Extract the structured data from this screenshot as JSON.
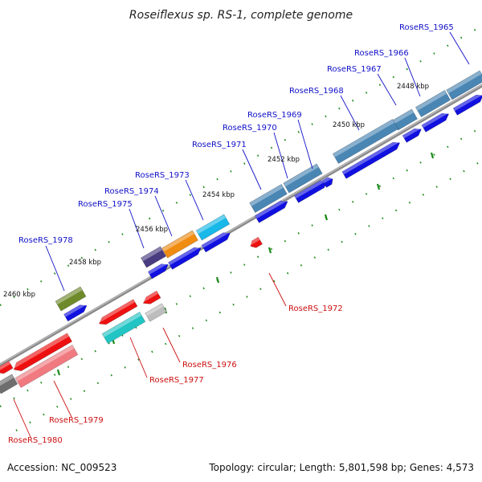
{
  "title": "Roseiflexus sp. RS-1, complete genome",
  "footer": {
    "accession": "Accession: NC_009523",
    "summary": "Topology: circular; Length: 5,801,598 bp; Genes: 4,573"
  },
  "colors": {
    "forward_label": "#1010c8",
    "reverse_label": "#cc1010",
    "backbone": "#8a8a8a",
    "tick": "#1a8a1a"
  },
  "scale_labels": [
    "2448 kbp",
    "2450 kbp",
    "2452 kbp",
    "2454 kbp",
    "2456 kbp",
    "2458 kbp",
    "2460 kbp"
  ],
  "genes": [
    {
      "id": "RoseRS_1965",
      "strand": "forward",
      "color": "#4a86b4"
    },
    {
      "id": "RoseRS_1966",
      "strand": "forward",
      "color": "#4a86b4"
    },
    {
      "id": "RoseRS_1967",
      "strand": "forward",
      "color": "#4a86b4"
    },
    {
      "id": "RoseRS_1968",
      "strand": "forward",
      "color": "#4a86b4"
    },
    {
      "id": "RoseRS_1969",
      "strand": "forward",
      "color": "#4a86b4"
    },
    {
      "id": "RoseRS_1970",
      "strand": "forward",
      "color": "#4a86b4"
    },
    {
      "id": "RoseRS_1971",
      "strand": "forward",
      "color": "#4a86b4"
    },
    {
      "id": "RoseRS_1973",
      "strand": "forward",
      "color": "#18b8e8"
    },
    {
      "id": "RoseRS_1974",
      "strand": "forward",
      "color": "#f08c10"
    },
    {
      "id": "RoseRS_1975",
      "strand": "forward",
      "color": "#4a3c80"
    },
    {
      "id": "RoseRS_1978",
      "strand": "forward",
      "color": "#6e8a2a"
    },
    {
      "id": "RoseRS_1972",
      "strand": "reverse",
      "color": "#ee1010"
    },
    {
      "id": "RoseRS_1976",
      "strand": "reverse",
      "color": "#bdbdbd"
    },
    {
      "id": "RoseRS_1977",
      "strand": "reverse",
      "color": "#22c4c4"
    },
    {
      "id": "RoseRS_1979",
      "strand": "reverse",
      "color": "#f07a80"
    },
    {
      "id": "RoseRS_1980",
      "strand": "reverse",
      "color": "#6e6e6e"
    }
  ]
}
